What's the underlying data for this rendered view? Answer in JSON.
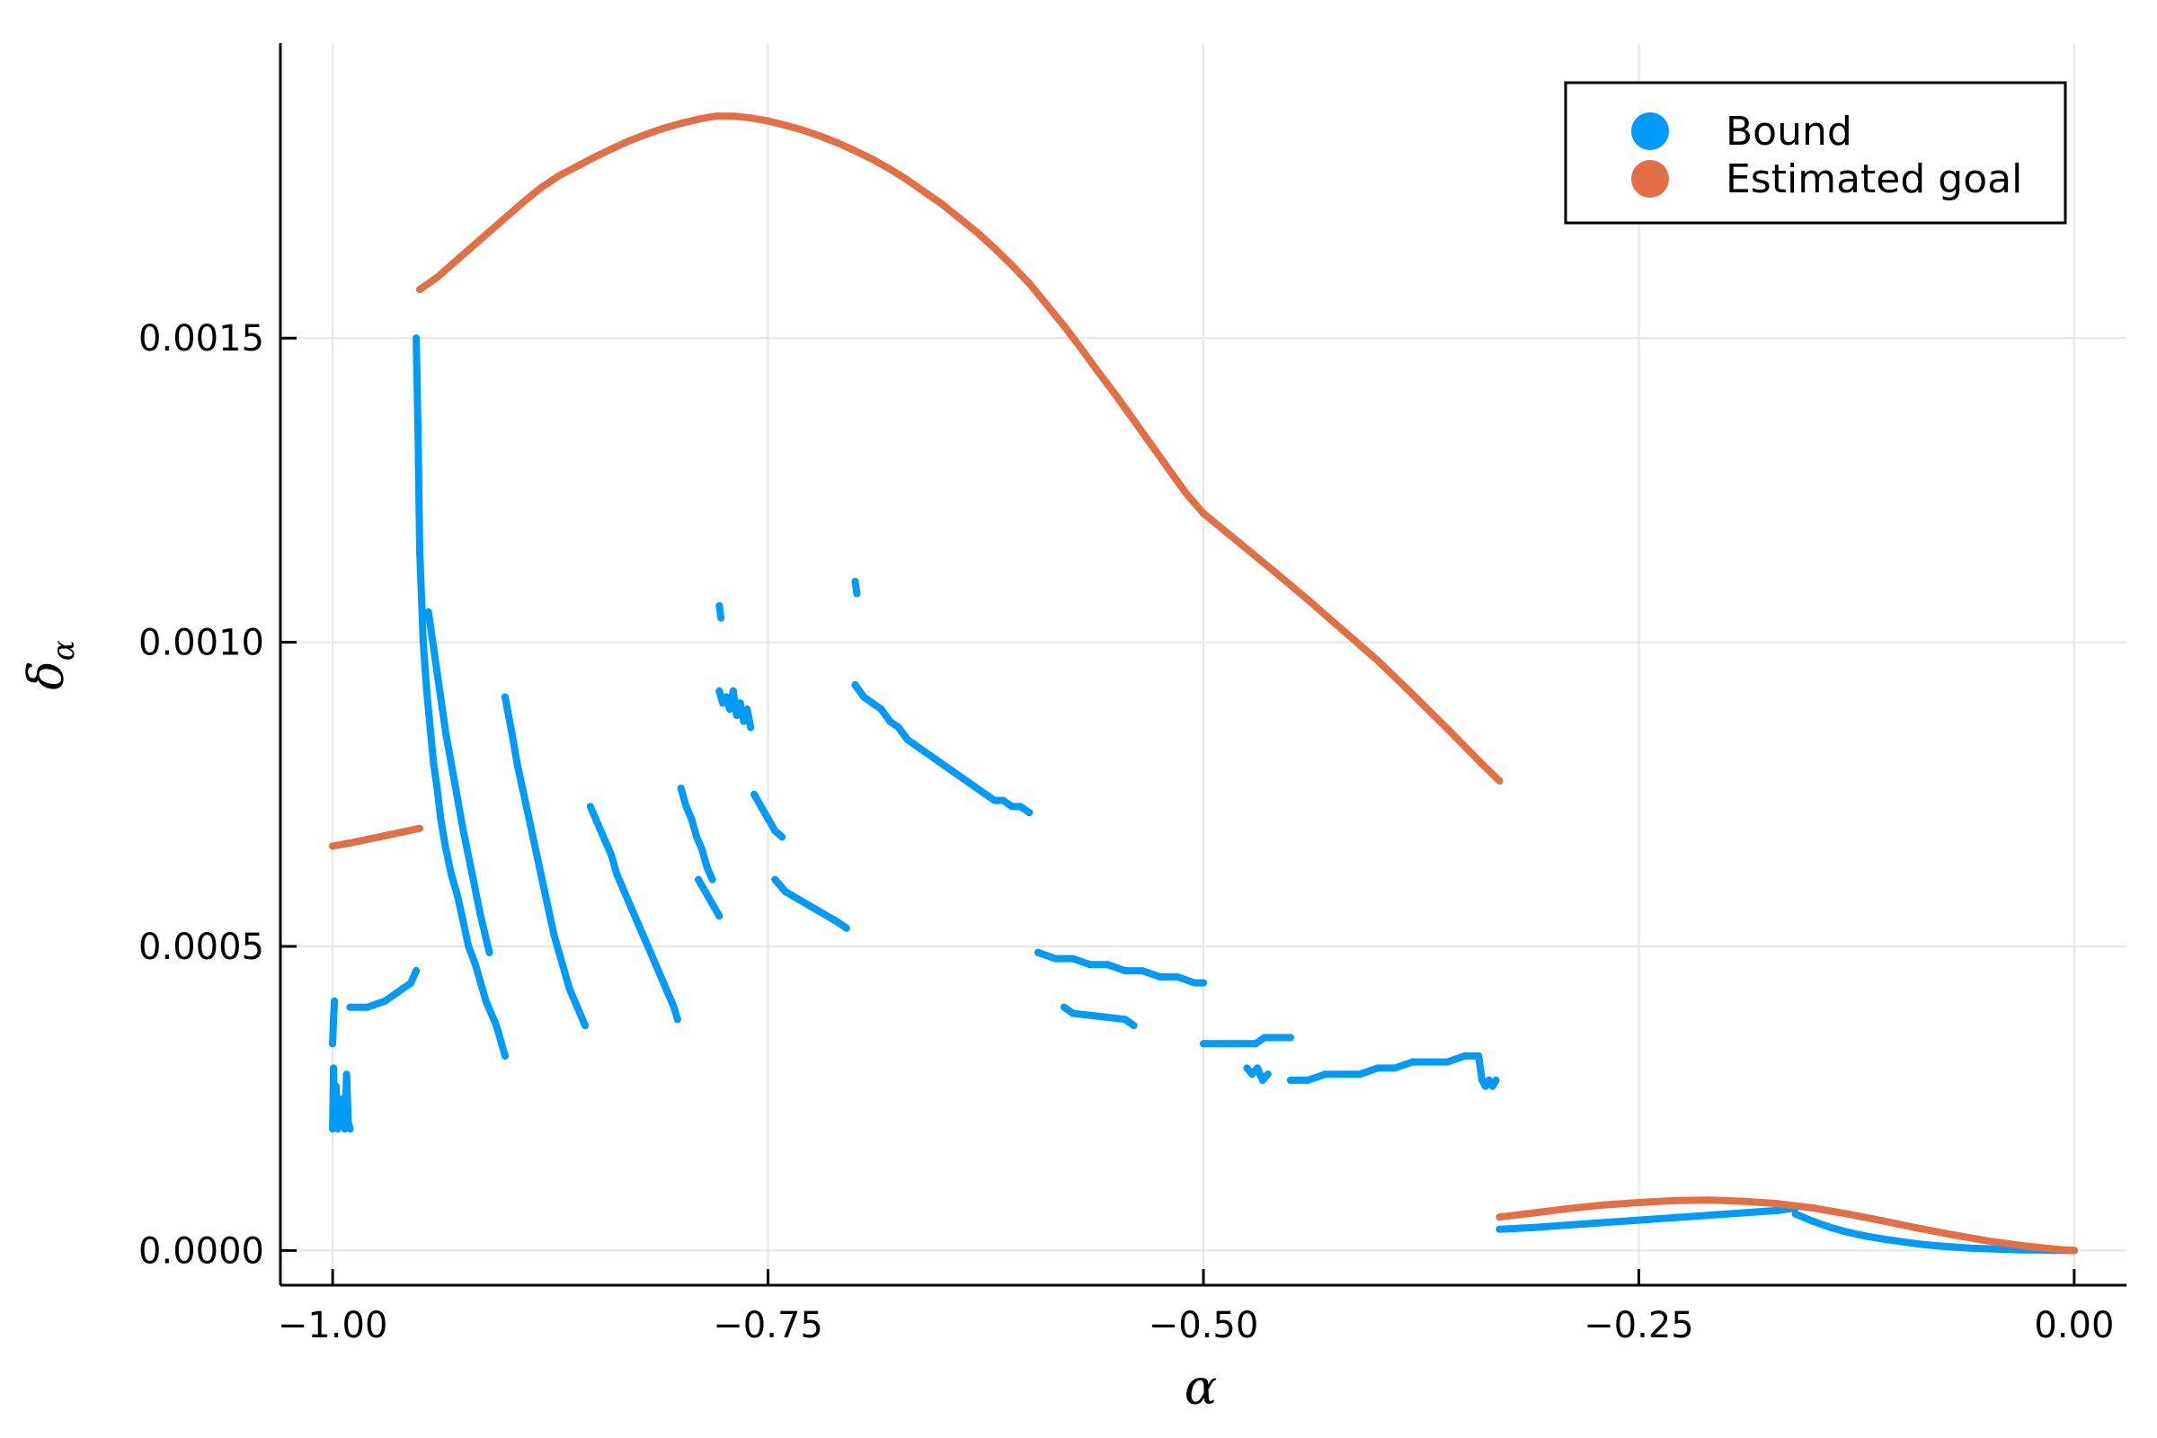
{
  "chart_data": {
    "type": "scatter",
    "xlabel": "α",
    "ylabel": "δ",
    "ylabel_subscript": "α",
    "xlim": [
      -1.03,
      0.03
    ],
    "ylim": [
      -5.7e-05,
      0.001985
    ],
    "xticks": [
      -1.0,
      -0.75,
      -0.5,
      -0.25,
      0.0
    ],
    "xtick_labels": [
      "−1.00",
      "−0.75",
      "−0.50",
      "−0.25",
      "0.00"
    ],
    "yticks": [
      0.0,
      0.0005,
      0.001,
      0.0015
    ],
    "ytick_labels": [
      "0.0000",
      "0.0005",
      "0.0010",
      "0.0015"
    ],
    "grid": true,
    "legend_position": "top-right",
    "colors": {
      "bound": "#009af9",
      "estimated_goal": "#e26f46"
    },
    "series": [
      {
        "name": "Bound",
        "color": "#009af9",
        "segments": [
          {
            "x": [
              -1.0,
              -0.9995,
              -0.999,
              -0.998,
              -0.997,
              -0.996,
              -0.995,
              -0.994,
              -0.993,
              -0.992,
              -0.991,
              -0.99
            ],
            "y": [
              0.0002,
              0.0003,
              0.00022,
              0.00027,
              0.0002,
              0.00024,
              0.00021,
              0.00025,
              0.0002,
              0.00029,
              0.00021,
              0.0002
            ]
          },
          {
            "x": [
              -1.0,
              -0.9995,
              -0.999
            ],
            "y": [
              0.00034,
              0.00038,
              0.00041
            ]
          },
          {
            "x": [
              -0.99,
              -0.98,
              -0.97,
              -0.965,
              -0.96,
              -0.955,
              -0.952
            ],
            "y": [
              0.0004,
              0.0004,
              0.00041,
              0.00042,
              0.00043,
              0.00044,
              0.00046
            ]
          },
          {
            "x": [
              -0.952,
              -0.951,
              -0.95,
              -0.948,
              -0.946,
              -0.944,
              -0.942,
              -0.94,
              -0.938,
              -0.935,
              -0.932,
              -0.928,
              -0.925,
              -0.922,
              -0.918,
              -0.915,
              -0.912,
              -0.909,
              -0.906,
              -0.903,
              -0.901
            ],
            "y": [
              0.0015,
              0.00135,
              0.00115,
              0.001,
              0.00092,
              0.00086,
              0.0008,
              0.00076,
              0.00071,
              0.00066,
              0.00062,
              0.00058,
              0.00054,
              0.0005,
              0.00047,
              0.00044,
              0.00041,
              0.00039,
              0.00037,
              0.00034,
              0.00032
            ]
          },
          {
            "x": [
              -0.945,
              -0.94,
              -0.935,
              -0.93,
              -0.925,
              -0.92,
              -0.915,
              -0.91
            ],
            "y": [
              0.00105,
              0.00095,
              0.00085,
              0.00077,
              0.00069,
              0.00062,
              0.00055,
              0.00049
            ]
          },
          {
            "x": [
              -0.901,
              -0.899,
              -0.897,
              -0.894,
              -0.891,
              -0.888,
              -0.885,
              -0.882,
              -0.879,
              -0.876,
              -0.873,
              -0.87,
              -0.867,
              -0.864,
              -0.861,
              -0.858,
              -0.855
            ],
            "y": [
              0.00091,
              0.00088,
              0.00085,
              0.0008,
              0.00076,
              0.00072,
              0.00068,
              0.00064,
              0.0006,
              0.00056,
              0.00052,
              0.00049,
              0.00046,
              0.00043,
              0.00041,
              0.00039,
              0.00037
            ]
          },
          {
            "x": [
              -0.852,
              -0.849,
              -0.846,
              -0.843,
              -0.84,
              -0.837,
              -0.834,
              -0.831,
              -0.828,
              -0.825,
              -0.822,
              -0.819,
              -0.816,
              -0.813,
              -0.81,
              -0.807,
              -0.804,
              -0.802
            ],
            "y": [
              0.00073,
              0.00071,
              0.00069,
              0.00067,
              0.00065,
              0.00062,
              0.0006,
              0.00058,
              0.00056,
              0.00054,
              0.00052,
              0.0005,
              0.00048,
              0.00046,
              0.00044,
              0.00042,
              0.0004,
              0.00038
            ]
          },
          {
            "x": [
              -0.8,
              -0.797,
              -0.794,
              -0.791,
              -0.788,
              -0.785,
              -0.782
            ],
            "y": [
              0.00076,
              0.00073,
              0.00071,
              0.00068,
              0.00066,
              0.00063,
              0.00061
            ]
          },
          {
            "x": [
              -0.79,
              -0.786,
              -0.782,
              -0.778
            ],
            "y": [
              0.00061,
              0.00059,
              0.00057,
              0.00055
            ]
          },
          {
            "x": [
              -0.778,
              -0.776,
              -0.774,
              -0.772,
              -0.77,
              -0.768,
              -0.766,
              -0.764,
              -0.762,
              -0.76
            ],
            "y": [
              0.00092,
              0.0009,
              0.00091,
              0.00089,
              0.00092,
              0.00088,
              0.0009,
              0.00087,
              0.00089,
              0.00086
            ]
          },
          {
            "x": [
              -0.778,
              -0.777
            ],
            "y": [
              0.00106,
              0.00104
            ]
          },
          {
            "x": [
              -0.758,
              -0.754,
              -0.75,
              -0.746,
              -0.742
            ],
            "y": [
              0.00075,
              0.00073,
              0.00071,
              0.00069,
              0.00068
            ]
          },
          {
            "x": [
              -0.746,
              -0.74,
              -0.734,
              -0.728,
              -0.722,
              -0.716,
              -0.71,
              -0.705
            ],
            "y": [
              0.00061,
              0.00059,
              0.00058,
              0.00057,
              0.00056,
              0.00055,
              0.00054,
              0.00053
            ]
          },
          {
            "x": [
              -0.7,
              -0.695,
              -0.69,
              -0.685,
              -0.68,
              -0.675,
              -0.67,
              -0.665,
              -0.66,
              -0.655,
              -0.65,
              -0.645,
              -0.64,
              -0.635,
              -0.63,
              -0.625,
              -0.62,
              -0.615,
              -0.61,
              -0.605,
              -0.6
            ],
            "y": [
              0.00093,
              0.00091,
              0.0009,
              0.00089,
              0.00087,
              0.00086,
              0.00084,
              0.00083,
              0.00082,
              0.00081,
              0.0008,
              0.00079,
              0.00078,
              0.00077,
              0.00076,
              0.00075,
              0.00074,
              0.00074,
              0.00073,
              0.00073,
              0.00072
            ]
          },
          {
            "x": [
              -0.7,
              -0.699
            ],
            "y": [
              0.0011,
              0.00108
            ]
          },
          {
            "x": [
              -0.595,
              -0.585,
              -0.575,
              -0.565,
              -0.555,
              -0.545,
              -0.535,
              -0.525,
              -0.515,
              -0.505,
              -0.5
            ],
            "y": [
              0.00049,
              0.00048,
              0.00048,
              0.00047,
              0.00047,
              0.00046,
              0.00046,
              0.00045,
              0.00045,
              0.00044,
              0.00044
            ]
          },
          {
            "x": [
              -0.58,
              -0.575,
              -0.545,
              -0.54
            ],
            "y": [
              0.0004,
              0.00039,
              0.00038,
              0.00037
            ]
          },
          {
            "x": [
              -0.5,
              -0.495,
              -0.49,
              -0.485,
              -0.48,
              -0.475,
              -0.47,
              -0.465,
              -0.46,
              -0.455,
              -0.45
            ],
            "y": [
              0.00034,
              0.00034,
              0.00034,
              0.00034,
              0.00034,
              0.00034,
              0.00034,
              0.00035,
              0.00035,
              0.00035,
              0.00035
            ]
          },
          {
            "x": [
              -0.475,
              -0.472,
              -0.469,
              -0.466,
              -0.463
            ],
            "y": [
              0.0003,
              0.00029,
              0.0003,
              0.00028,
              0.00029
            ]
          },
          {
            "x": [
              -0.45,
              -0.44,
              -0.43,
              -0.42,
              -0.41,
              -0.4,
              -0.39,
              -0.38,
              -0.37,
              -0.36,
              -0.35,
              -0.342
            ],
            "y": [
              0.00028,
              0.00028,
              0.00029,
              0.00029,
              0.00029,
              0.0003,
              0.0003,
              0.00031,
              0.00031,
              0.00031,
              0.00032,
              0.00032
            ]
          },
          {
            "x": [
              -0.342,
              -0.34,
              -0.338,
              -0.336,
              -0.334,
              -0.332
            ],
            "y": [
              0.00032,
              0.00028,
              0.00027,
              0.00028,
              0.00027,
              0.00028
            ]
          },
          {
            "x": [
              -0.33,
              -0.31,
              -0.29,
              -0.27,
              -0.25,
              -0.23,
              -0.21,
              -0.19,
              -0.17,
              -0.16
            ],
            "y": [
              3.5e-05,
              3.8e-05,
              4.2e-05,
              4.6e-05,
              5e-05,
              5.4e-05,
              5.8e-05,
              6.2e-05,
              6.6e-05,
              7e-05
            ]
          },
          {
            "x": [
              -0.16,
              -0.15,
              -0.14,
              -0.13,
              -0.12,
              -0.11,
              -0.1,
              -0.09,
              -0.08,
              -0.07,
              -0.06,
              -0.05,
              -0.04,
              -0.03,
              -0.02,
              -0.01,
              0.0
            ],
            "y": [
              6e-05,
              4.8e-05,
              3.8e-05,
              3e-05,
              2.4e-05,
              1.9e-05,
              1.5e-05,
              1.1e-05,
              8e-06,
              6e-06,
              4e-06,
              3e-06,
              2e-06,
              1e-06,
              1e-06,
              5e-07,
              0.0
            ]
          }
        ]
      },
      {
        "name": "Estimated goal",
        "color": "#e26f46",
        "segments": [
          {
            "x": [
              -1.0,
              -0.99,
              -0.98,
              -0.97,
              -0.96,
              -0.95
            ],
            "y": [
              0.000665,
              0.00067,
              0.000676,
              0.000682,
              0.000688,
              0.000694
            ]
          },
          {
            "x": [
              -0.95,
              -0.94,
              -0.93,
              -0.92,
              -0.91,
              -0.9,
              -0.89,
              -0.88,
              -0.87,
              -0.86,
              -0.85,
              -0.84,
              -0.83,
              -0.82,
              -0.81,
              -0.8,
              -0.79,
              -0.78,
              -0.77,
              -0.76,
              -0.75,
              -0.74,
              -0.73,
              -0.72,
              -0.71,
              -0.7,
              -0.69,
              -0.68,
              -0.67,
              -0.66,
              -0.65,
              -0.64,
              -0.63,
              -0.62,
              -0.61,
              -0.6,
              -0.59,
              -0.58,
              -0.57,
              -0.56,
              -0.55,
              -0.54,
              -0.53,
              -0.52,
              -0.51,
              -0.5
            ],
            "y": [
              0.00158,
              0.0016,
              0.001625,
              0.00165,
              0.001675,
              0.0017,
              0.001725,
              0.001748,
              0.001767,
              0.001782,
              0.001797,
              0.001811,
              0.001824,
              0.001835,
              0.001845,
              0.001853,
              0.00186,
              0.001865,
              0.001865,
              0.001862,
              0.001857,
              0.00185,
              0.001842,
              0.001832,
              0.001821,
              0.001808,
              0.001794,
              0.001778,
              0.00176,
              0.00174,
              0.00172,
              0.001697,
              0.001674,
              0.001648,
              0.00162,
              0.00159,
              0.001555,
              0.00152,
              0.001482,
              0.001443,
              0.001405,
              0.001365,
              0.001325,
              0.001285,
              0.001245,
              0.001212
            ]
          },
          {
            "x": [
              -0.5,
              -0.48,
              -0.46,
              -0.44,
              -0.42,
              -0.4,
              -0.38,
              -0.36,
              -0.34,
              -0.33
            ],
            "y": [
              0.001212,
              0.001165,
              0.001118,
              0.00107,
              0.00102,
              0.00097,
              0.000915,
              0.000858,
              0.0008,
              0.000772
            ]
          },
          {
            "x": [
              -0.33,
              -0.31,
              -0.29,
              -0.27,
              -0.25,
              -0.23,
              -0.21,
              -0.19,
              -0.17,
              -0.15,
              -0.13,
              -0.11,
              -0.09,
              -0.07,
              -0.05,
              -0.03,
              -0.01,
              0.0
            ],
            "y": [
              5.5e-05,
              6.2e-05,
              6.9e-05,
              7.5e-05,
              7.9e-05,
              8.2e-05,
              8.3e-05,
              8.1e-05,
              7.7e-05,
              7e-05,
              6e-05,
              4.9e-05,
              3.7e-05,
              2.6e-05,
              1.6e-05,
              8e-06,
              2e-06,
              0.0
            ]
          }
        ]
      }
    ]
  }
}
